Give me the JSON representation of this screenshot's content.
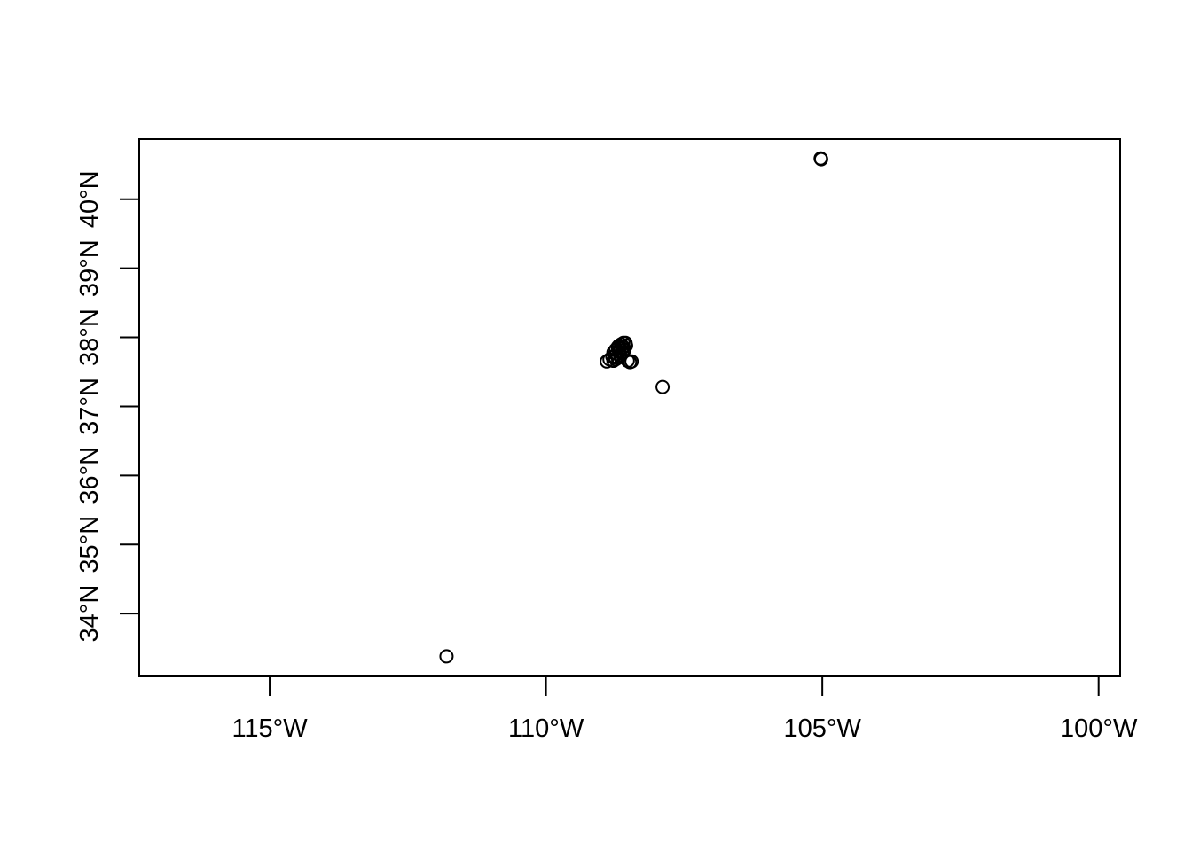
{
  "chart_data": {
    "type": "scatter",
    "title": "",
    "xlabel": "",
    "ylabel": "",
    "grid": false,
    "marker": "open-circle",
    "colors": {
      "marker": "#000000",
      "axis": "#000000",
      "background": "#ffffff"
    },
    "xlim": [
      -117.36,
      -99.61
    ],
    "ylim": [
      33.09,
      40.87
    ],
    "x_ticks": [
      {
        "value": -115,
        "label": "115°W"
      },
      {
        "value": -110,
        "label": "110°W"
      },
      {
        "value": -105,
        "label": "105°W"
      },
      {
        "value": -100,
        "label": "100°W"
      }
    ],
    "y_ticks": [
      {
        "value": 34,
        "label": "34°N"
      },
      {
        "value": 35,
        "label": "35°N"
      },
      {
        "value": 36,
        "label": "36°N"
      },
      {
        "value": 37,
        "label": "37°N"
      },
      {
        "value": 38,
        "label": "38°N"
      },
      {
        "value": 39,
        "label": "39°N"
      },
      {
        "value": 40,
        "label": "40°N"
      }
    ],
    "series": [
      {
        "points": [
          {
            "x": -111.8,
            "y": 33.38
          },
          {
            "x": -105.02,
            "y": 40.58
          },
          {
            "x": -105.03,
            "y": 40.59
          },
          {
            "x": -107.89,
            "y": 37.28
          },
          {
            "x": -108.9,
            "y": 37.65
          },
          {
            "x": -108.85,
            "y": 37.68
          },
          {
            "x": -108.8,
            "y": 37.72
          },
          {
            "x": -108.78,
            "y": 37.78
          },
          {
            "x": -108.74,
            "y": 37.82
          },
          {
            "x": -108.7,
            "y": 37.86
          },
          {
            "x": -108.68,
            "y": 37.88
          },
          {
            "x": -108.64,
            "y": 37.9
          },
          {
            "x": -108.6,
            "y": 37.92
          },
          {
            "x": -108.56,
            "y": 37.92
          },
          {
            "x": -108.55,
            "y": 37.88
          },
          {
            "x": -108.58,
            "y": 37.82
          },
          {
            "x": -108.62,
            "y": 37.78
          },
          {
            "x": -108.66,
            "y": 37.74
          },
          {
            "x": -108.7,
            "y": 37.7
          },
          {
            "x": -108.74,
            "y": 37.68
          },
          {
            "x": -108.78,
            "y": 37.66
          },
          {
            "x": -108.72,
            "y": 37.76
          },
          {
            "x": -108.66,
            "y": 37.84
          },
          {
            "x": -108.6,
            "y": 37.86
          },
          {
            "x": -108.52,
            "y": 37.66
          },
          {
            "x": -108.48,
            "y": 37.64
          },
          {
            "x": -108.45,
            "y": 37.65
          },
          {
            "x": -108.76,
            "y": 37.72
          },
          {
            "x": -108.68,
            "y": 37.8
          },
          {
            "x": -108.62,
            "y": 37.84
          }
        ]
      }
    ]
  }
}
